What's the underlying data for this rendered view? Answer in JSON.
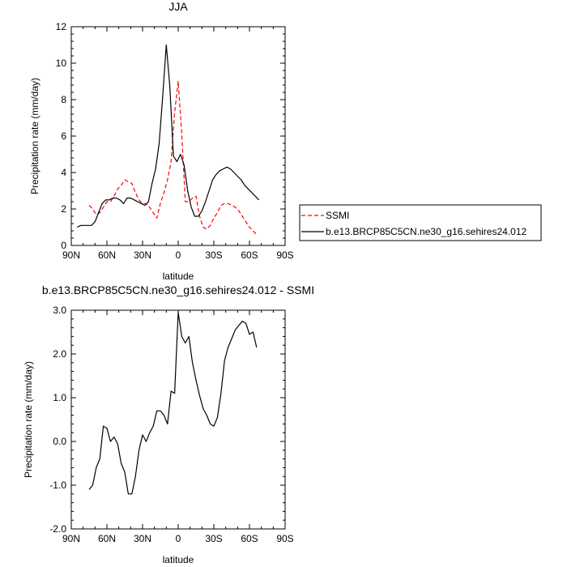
{
  "chart_data": [
    {
      "type": "line",
      "title": "JJA",
      "xlabel": "latitude",
      "ylabel": "Precipitation rate (mm/day)",
      "xlim": [
        90,
        -90
      ],
      "ylim": [
        0,
        12
      ],
      "x_ticks": [
        90,
        60,
        30,
        0,
        -30,
        -60,
        -90
      ],
      "x_tick_labels": [
        "90N",
        "60N",
        "30N",
        "0",
        "30S",
        "60S",
        "90S"
      ],
      "y_ticks": [
        0,
        2,
        4,
        6,
        8,
        10,
        12
      ],
      "y_tick_labels": [
        "0",
        "2",
        "4",
        "6",
        "8",
        "10",
        "12"
      ],
      "legend_position": "right",
      "series": [
        {
          "name": "SSMI",
          "color": "#ff0000",
          "dash": "dashed",
          "x": [
            75,
            72,
            69,
            66,
            63,
            60,
            57,
            54,
            51,
            48,
            45,
            42,
            39,
            36,
            33,
            30,
            27,
            24,
            21,
            18,
            15,
            12,
            9,
            6,
            3,
            0,
            -3,
            -6,
            -9,
            -12,
            -15,
            -18,
            -21,
            -24,
            -27,
            -30,
            -33,
            -36,
            -39,
            -42,
            -45,
            -48,
            -51,
            -54,
            -57,
            -60,
            -63,
            -66
          ],
          "values": [
            2.2,
            2.0,
            1.7,
            1.8,
            2.1,
            2.4,
            2.4,
            2.7,
            3.1,
            3.3,
            3.6,
            3.5,
            3.4,
            2.9,
            2.5,
            2.3,
            2.3,
            2.1,
            1.8,
            1.5,
            2.3,
            2.9,
            3.6,
            4.6,
            7.3,
            9.0,
            6.1,
            2.4,
            2.4,
            2.6,
            2.7,
            1.6,
            1.0,
            0.9,
            1.1,
            1.5,
            1.8,
            2.2,
            2.3,
            2.3,
            2.2,
            2.1,
            1.9,
            1.6,
            1.3,
            1.0,
            0.8,
            0.6
          ]
        },
        {
          "name": "b.e13.BRCP85C5CN.ne30_g16.sehires24.012",
          "color": "#000000",
          "dash": "solid",
          "x": [
            85,
            82,
            79,
            76,
            73,
            70,
            67,
            64,
            61,
            58,
            55,
            52,
            49,
            46,
            43,
            40,
            37,
            34,
            31,
            28,
            25,
            22,
            19,
            16,
            13,
            10,
            7,
            4,
            1,
            -2,
            -5,
            -8,
            -11,
            -14,
            -17,
            -20,
            -23,
            -26,
            -29,
            -32,
            -35,
            -38,
            -41,
            -44,
            -47,
            -50,
            -53,
            -56,
            -59,
            -62,
            -65,
            -68
          ],
          "values": [
            1.0,
            1.1,
            1.1,
            1.1,
            1.1,
            1.3,
            1.8,
            2.3,
            2.5,
            2.5,
            2.6,
            2.6,
            2.5,
            2.3,
            2.6,
            2.6,
            2.5,
            2.4,
            2.3,
            2.2,
            2.4,
            3.4,
            4.2,
            5.6,
            8.2,
            11.0,
            8.7,
            4.9,
            4.6,
            5.0,
            4.4,
            3.0,
            2.1,
            1.6,
            1.6,
            1.9,
            2.4,
            3.0,
            3.6,
            3.9,
            4.1,
            4.2,
            4.3,
            4.2,
            4.0,
            3.8,
            3.6,
            3.3,
            3.1,
            2.9,
            2.7,
            2.5
          ]
        }
      ]
    },
    {
      "type": "line",
      "title": "b.e13.BRCP85C5CN.ne30_g16.sehires24.012 - SSMI",
      "xlabel": "latitude",
      "ylabel": "Precipitation rate (mm/day)",
      "xlim": [
        90,
        -90
      ],
      "ylim": [
        -2.0,
        3.0
      ],
      "x_ticks": [
        90,
        60,
        30,
        0,
        -30,
        -60,
        -90
      ],
      "x_tick_labels": [
        "90N",
        "60N",
        "30N",
        "0",
        "30S",
        "60S",
        "90S"
      ],
      "y_ticks": [
        -2.0,
        -1.0,
        0.0,
        1.0,
        2.0,
        3.0
      ],
      "y_tick_labels": [
        "-2.0",
        "-1.0",
        "0.0",
        "1.0",
        "2.0",
        "3.0"
      ],
      "series": [
        {
          "color": "#000000",
          "dash": "solid",
          "x": [
            75,
            72,
            69,
            66,
            63,
            60,
            57,
            54,
            51,
            48,
            45,
            42,
            39,
            36,
            33,
            30,
            27,
            24,
            21,
            18,
            15,
            12,
            9,
            6,
            3,
            0,
            -3,
            -6,
            -9,
            -12,
            -15,
            -18,
            -21,
            -24,
            -27,
            -30,
            -33,
            -36,
            -39,
            -42,
            -45,
            -48,
            -51,
            -54,
            -57,
            -60,
            -63,
            -66
          ],
          "values": [
            -1.1,
            -1.0,
            -0.6,
            -0.4,
            0.35,
            0.3,
            0.0,
            0.1,
            -0.05,
            -0.5,
            -0.7,
            -1.2,
            -1.2,
            -0.8,
            -0.2,
            0.15,
            0.0,
            0.2,
            0.35,
            0.7,
            0.7,
            0.6,
            0.4,
            1.15,
            1.1,
            2.95,
            2.4,
            2.25,
            2.4,
            1.8,
            1.4,
            1.05,
            0.75,
            0.6,
            0.4,
            0.35,
            0.55,
            1.1,
            1.85,
            2.15,
            2.35,
            2.55,
            2.65,
            2.75,
            2.7,
            2.45,
            2.5,
            2.15
          ]
        }
      ]
    }
  ]
}
